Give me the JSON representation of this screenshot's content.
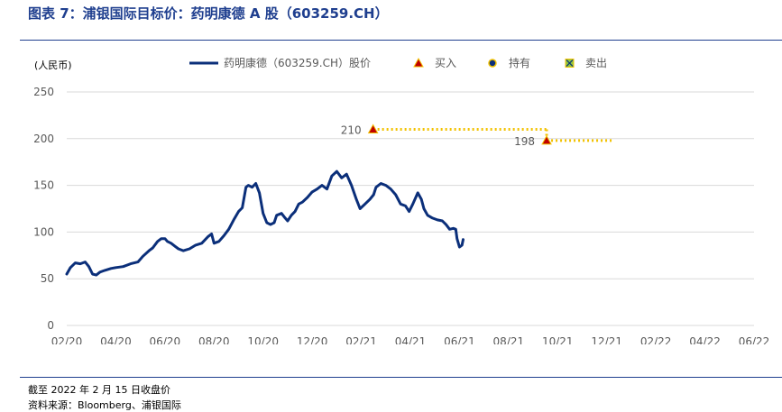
{
  "header": {
    "figure_title": "图表 7：浦银国际目标价：药明康德 A 股（603259.CH）"
  },
  "footer": {
    "note": "截至 2022 年 2 月 15 日收盘价",
    "source": "资料来源：Bloomberg、浦银国际"
  },
  "chart_data": {
    "type": "line",
    "unit_label": "(人民币)",
    "ylim": [
      0,
      250
    ],
    "yticks": [
      "0",
      "50",
      "100",
      "150",
      "200",
      "250"
    ],
    "xticks": [
      "02/20",
      "04/20",
      "06/20",
      "08/20",
      "10/20",
      "12/20",
      "02/21",
      "04/21",
      "06/21",
      "08/21",
      "10/21",
      "12/21",
      "02/22",
      "04/22",
      "06/22"
    ],
    "grid": "horizontal",
    "legend_position": "top",
    "legend": [
      {
        "label": "药明康德（603259.CH）股价",
        "marker": "line"
      },
      {
        "label": "买入",
        "marker": "triangle"
      },
      {
        "label": "持有",
        "marker": "circle"
      },
      {
        "label": "卖出",
        "marker": "square-x"
      }
    ],
    "colors": {
      "price": "#0b2f7a",
      "buy": "#c00000",
      "target": "#f2c200",
      "grid": "#d9d9d9",
      "axis_text": "#595959"
    },
    "series": [
      {
        "name": "药明康德（603259.CH）股价",
        "points": [
          [
            0,
            55
          ],
          [
            0.15,
            62
          ],
          [
            0.35,
            67
          ],
          [
            0.55,
            66
          ],
          [
            0.75,
            68
          ],
          [
            0.9,
            63
          ],
          [
            1.05,
            55
          ],
          [
            1.2,
            54
          ],
          [
            1.35,
            57
          ],
          [
            1.55,
            59
          ],
          [
            1.8,
            61
          ],
          [
            2.0,
            62
          ],
          [
            2.3,
            63
          ],
          [
            2.6,
            66
          ],
          [
            2.9,
            68
          ],
          [
            3.1,
            74
          ],
          [
            3.35,
            80
          ],
          [
            3.5,
            83
          ],
          [
            3.7,
            90
          ],
          [
            3.85,
            93
          ],
          [
            4.0,
            93
          ],
          [
            4.1,
            90
          ],
          [
            4.25,
            88
          ],
          [
            4.4,
            85
          ],
          [
            4.55,
            82
          ],
          [
            4.75,
            80
          ],
          [
            5.0,
            82
          ],
          [
            5.25,
            86
          ],
          [
            5.5,
            88
          ],
          [
            5.75,
            95
          ],
          [
            5.9,
            98
          ],
          [
            6.0,
            88
          ],
          [
            6.2,
            90
          ],
          [
            6.4,
            96
          ],
          [
            6.6,
            103
          ],
          [
            6.8,
            113
          ],
          [
            7.0,
            122
          ],
          [
            7.15,
            126
          ],
          [
            7.3,
            148
          ],
          [
            7.4,
            150
          ],
          [
            7.55,
            148
          ],
          [
            7.7,
            152
          ],
          [
            7.85,
            142
          ],
          [
            8.0,
            120
          ],
          [
            8.15,
            110
          ],
          [
            8.3,
            108
          ],
          [
            8.45,
            110
          ],
          [
            8.55,
            118
          ],
          [
            8.75,
            120
          ],
          [
            8.9,
            115
          ],
          [
            9.0,
            112
          ],
          [
            9.15,
            118
          ],
          [
            9.3,
            122
          ],
          [
            9.45,
            130
          ],
          [
            9.6,
            132
          ],
          [
            9.8,
            137
          ],
          [
            10.0,
            143
          ],
          [
            10.2,
            146
          ],
          [
            10.4,
            150
          ],
          [
            10.6,
            146
          ],
          [
            10.8,
            160
          ],
          [
            11.0,
            165
          ],
          [
            11.2,
            158
          ],
          [
            11.4,
            162
          ],
          [
            11.6,
            150
          ],
          [
            11.8,
            135
          ],
          [
            11.95,
            125
          ],
          [
            12.15,
            130
          ],
          [
            12.35,
            135
          ],
          [
            12.5,
            140
          ],
          [
            12.6,
            148
          ],
          [
            12.8,
            152
          ],
          [
            13.0,
            150
          ],
          [
            13.2,
            146
          ],
          [
            13.4,
            140
          ],
          [
            13.6,
            130
          ],
          [
            13.8,
            128
          ],
          [
            13.95,
            122
          ],
          [
            14.1,
            130
          ],
          [
            14.3,
            142
          ],
          [
            14.45,
            135
          ],
          [
            14.55,
            125
          ],
          [
            14.7,
            118
          ],
          [
            14.9,
            115
          ],
          [
            15.1,
            113
          ],
          [
            15.3,
            112
          ],
          [
            15.45,
            108
          ],
          [
            15.6,
            103
          ],
          [
            15.75,
            104
          ],
          [
            15.85,
            103
          ],
          [
            15.9,
            93
          ],
          [
            16.0,
            84
          ],
          [
            16.1,
            86
          ],
          [
            16.15,
            92
          ]
        ]
      }
    ],
    "target_prices": [
      {
        "label": "210",
        "rating": "买入",
        "x_start": 12.48,
        "value": 210,
        "x_end": 19.55
      },
      {
        "label": "198",
        "rating": "买入",
        "x_start": 19.55,
        "value": 198,
        "x_end": 22.3
      }
    ]
  }
}
